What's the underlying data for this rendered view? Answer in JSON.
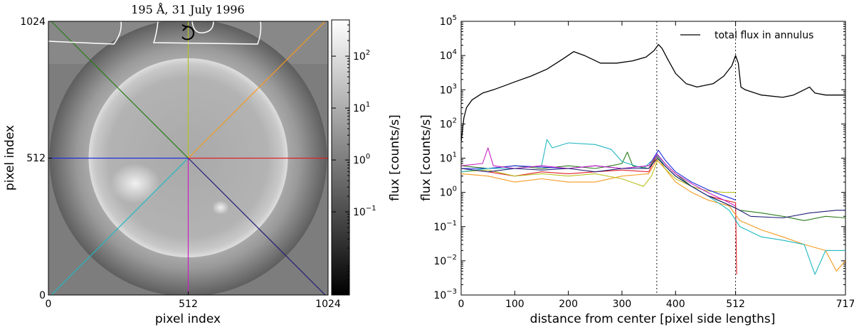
{
  "chart_data": [
    {
      "type": "heatmap",
      "title": "195 Å, 31 July 1996",
      "xlabel": "pixel index",
      "ylabel": "pixel index",
      "x_ticks": [
        "0",
        "512",
        "1024"
      ],
      "y_ticks": [
        "0",
        "512",
        "1024"
      ],
      "xlim": [
        0,
        1024
      ],
      "ylim": [
        0,
        1024
      ],
      "sun_center": [
        512,
        512
      ],
      "sun_radius": 365,
      "colorbar": {
        "label": "flux [counts/s]",
        "scale": "log",
        "range": [
          0.0025,
          500
        ],
        "ticks": [
          {
            "value": 100,
            "label": "10",
            "exp": "2"
          },
          {
            "value": 10,
            "label": "10",
            "exp": "1"
          },
          {
            "value": 1,
            "label": "10",
            "exp": "0"
          },
          {
            "value": 0.1,
            "label": "10",
            "exp": "−1"
          }
        ]
      },
      "rays": [
        {
          "name": "red",
          "color": "#e0202a",
          "angle_deg": 0
        },
        {
          "name": "orange",
          "color": "#f59a1f",
          "angle_deg": 45
        },
        {
          "name": "yellow",
          "color": "#b8c020",
          "angle_deg": 90
        },
        {
          "name": "green",
          "color": "#2a7d1a",
          "angle_deg": 135
        },
        {
          "name": "blue",
          "color": "#1f2ee0",
          "angle_deg": 180
        },
        {
          "name": "cyan",
          "color": "#20b8c0",
          "angle_deg": 225
        },
        {
          "name": "magenta",
          "color": "#c820c0",
          "angle_deg": 270
        },
        {
          "name": "navy",
          "color": "#1e1e78",
          "angle_deg": 315
        }
      ]
    },
    {
      "type": "line",
      "xlabel": "distance from center [pixel side lengths]",
      "ylabel": "flux [counts/s]",
      "yscale": "log",
      "xlim": [
        0,
        717
      ],
      "ylim": [
        0.001,
        100000
      ],
      "x_ticks": [
        "0",
        "100",
        "200",
        "300",
        "400",
        "512",
        "717"
      ],
      "y_ticks": [
        {
          "label": "10",
          "exp": "5"
        },
        {
          "label": "10",
          "exp": "4"
        },
        {
          "label": "10",
          "exp": "3"
        },
        {
          "label": "10",
          "exp": "2"
        },
        {
          "label": "10",
          "exp": "1"
        },
        {
          "label": "10",
          "exp": "0"
        },
        {
          "label": "10",
          "exp": "−1"
        },
        {
          "label": "10",
          "exp": "−2"
        },
        {
          "label": "10",
          "exp": "−3"
        }
      ],
      "vlines": [
        365,
        512
      ],
      "legend": {
        "label": "total flux in annulus",
        "position": "top-right"
      },
      "total_series": {
        "name": "total flux in annulus",
        "color": "#000000",
        "points": [
          [
            0,
            30
          ],
          [
            5,
            150
          ],
          [
            10,
            300
          ],
          [
            20,
            500
          ],
          [
            40,
            800
          ],
          [
            60,
            1000
          ],
          [
            80,
            1300
          ],
          [
            100,
            1700
          ],
          [
            130,
            2500
          ],
          [
            160,
            4000
          ],
          [
            190,
            8000
          ],
          [
            210,
            13000
          ],
          [
            230,
            10000
          ],
          [
            260,
            6000
          ],
          [
            290,
            6000
          ],
          [
            320,
            7000
          ],
          [
            345,
            9000
          ],
          [
            360,
            14000
          ],
          [
            368,
            21000
          ],
          [
            375,
            16000
          ],
          [
            385,
            8000
          ],
          [
            400,
            3000
          ],
          [
            420,
            1500
          ],
          [
            440,
            1200
          ],
          [
            470,
            1500
          ],
          [
            490,
            2500
          ],
          [
            505,
            5000
          ],
          [
            512,
            10000
          ],
          [
            517,
            6000
          ],
          [
            522,
            1200
          ],
          [
            530,
            1000
          ],
          [
            560,
            700
          ],
          [
            600,
            600
          ],
          [
            620,
            700
          ],
          [
            640,
            1000
          ],
          [
            650,
            1200
          ],
          [
            660,
            800
          ],
          [
            680,
            700
          ],
          [
            717,
            700
          ]
        ]
      },
      "ray_series": [
        {
          "name": "red",
          "color": "#e0202a",
          "points": [
            [
              0,
              5
            ],
            [
              50,
              4
            ],
            [
              100,
              3
            ],
            [
              150,
              4
            ],
            [
              200,
              3.5
            ],
            [
              250,
              4
            ],
            [
              300,
              4.5
            ],
            [
              350,
              4
            ],
            [
              365,
              12
            ],
            [
              380,
              6
            ],
            [
              400,
              3
            ],
            [
              430,
              1.5
            ],
            [
              460,
              0.8
            ],
            [
              490,
              0.6
            ],
            [
              512,
              0.5
            ],
            [
              514,
              0.004
            ]
          ]
        },
        {
          "name": "orange",
          "color": "#f59a1f",
          "points": [
            [
              0,
              3.5
            ],
            [
              50,
              3
            ],
            [
              100,
              2
            ],
            [
              150,
              2.5
            ],
            [
              200,
              2
            ],
            [
              250,
              2
            ],
            [
              300,
              3
            ],
            [
              350,
              3.5
            ],
            [
              365,
              9
            ],
            [
              380,
              5
            ],
            [
              400,
              2
            ],
            [
              430,
              1
            ],
            [
              460,
              0.6
            ],
            [
              500,
              0.4
            ],
            [
              520,
              0.15
            ],
            [
              560,
              0.08
            ],
            [
              600,
              0.05
            ],
            [
              640,
              0.03
            ],
            [
              680,
              0.02
            ],
            [
              700,
              0.005
            ],
            [
              717,
              0.01
            ]
          ]
        },
        {
          "name": "yellow",
          "color": "#b8c020",
          "points": [
            [
              0,
              4
            ],
            [
              50,
              4.5
            ],
            [
              100,
              3
            ],
            [
              150,
              3.5
            ],
            [
              200,
              3
            ],
            [
              250,
              3.5
            ],
            [
              300,
              2.5
            ],
            [
              340,
              1.5
            ],
            [
              355,
              3
            ],
            [
              368,
              10
            ],
            [
              380,
              5
            ],
            [
              400,
              2.5
            ],
            [
              430,
              1.5
            ],
            [
              460,
              1.1
            ],
            [
              490,
              1
            ],
            [
              512,
              1
            ]
          ]
        },
        {
          "name": "green",
          "color": "#2a7d1a",
          "points": [
            [
              0,
              6
            ],
            [
              50,
              5
            ],
            [
              100,
              6
            ],
            [
              150,
              5
            ],
            [
              200,
              6
            ],
            [
              250,
              5
            ],
            [
              280,
              6
            ],
            [
              300,
              7
            ],
            [
              310,
              15
            ],
            [
              320,
              6
            ],
            [
              350,
              5
            ],
            [
              366,
              13
            ],
            [
              380,
              7
            ],
            [
              400,
              3.5
            ],
            [
              430,
              1.5
            ],
            [
              460,
              0.8
            ],
            [
              490,
              0.5
            ],
            [
              520,
              0.3
            ],
            [
              560,
              0.25
            ],
            [
              600,
              0.2
            ],
            [
              640,
              0.15
            ],
            [
              680,
              0.2
            ],
            [
              717,
              0.18
            ]
          ]
        },
        {
          "name": "blue",
          "color": "#1f2ee0",
          "points": [
            [
              0,
              5
            ],
            [
              50,
              5
            ],
            [
              100,
              6
            ],
            [
              150,
              5.5
            ],
            [
              200,
              5
            ],
            [
              250,
              6
            ],
            [
              300,
              5
            ],
            [
              350,
              6
            ],
            [
              368,
              17
            ],
            [
              380,
              9
            ],
            [
              400,
              4
            ],
            [
              430,
              2
            ],
            [
              460,
              1.2
            ],
            [
              490,
              0.8
            ],
            [
              512,
              0.6
            ]
          ]
        },
        {
          "name": "cyan",
          "color": "#20b8c0",
          "points": [
            [
              0,
              4
            ],
            [
              50,
              5
            ],
            [
              100,
              5
            ],
            [
              150,
              6
            ],
            [
              160,
              35
            ],
            [
              170,
              20
            ],
            [
              200,
              28
            ],
            [
              250,
              25
            ],
            [
              280,
              18
            ],
            [
              300,
              8
            ],
            [
              340,
              5
            ],
            [
              366,
              12
            ],
            [
              380,
              6
            ],
            [
              400,
              3
            ],
            [
              430,
              1.5
            ],
            [
              460,
              0.8
            ],
            [
              500,
              0.3
            ],
            [
              520,
              0.1
            ],
            [
              560,
              0.05
            ],
            [
              600,
              0.04
            ],
            [
              640,
              0.03
            ],
            [
              660,
              0.004
            ],
            [
              680,
              0.02
            ],
            [
              717,
              0.02
            ]
          ]
        },
        {
          "name": "magenta",
          "color": "#c820c0",
          "points": [
            [
              0,
              6
            ],
            [
              40,
              7
            ],
            [
              50,
              20
            ],
            [
              60,
              6
            ],
            [
              100,
              5
            ],
            [
              150,
              6
            ],
            [
              200,
              5
            ],
            [
              250,
              6
            ],
            [
              300,
              5
            ],
            [
              350,
              6
            ],
            [
              366,
              13
            ],
            [
              380,
              7
            ],
            [
              400,
              3.5
            ],
            [
              430,
              1.8
            ],
            [
              460,
              1
            ],
            [
              490,
              0.6
            ],
            [
              512,
              0.4
            ]
          ]
        },
        {
          "name": "navy",
          "color": "#1e1e78",
          "points": [
            [
              0,
              5
            ],
            [
              50,
              4
            ],
            [
              100,
              5
            ],
            [
              150,
              4.5
            ],
            [
              200,
              5
            ],
            [
              250,
              4
            ],
            [
              300,
              5
            ],
            [
              350,
              5
            ],
            [
              366,
              10
            ],
            [
              380,
              6
            ],
            [
              400,
              3
            ],
            [
              430,
              1.5
            ],
            [
              460,
              0.8
            ],
            [
              490,
              0.5
            ],
            [
              512,
              0.35
            ],
            [
              540,
              0.2
            ],
            [
              600,
              0.18
            ],
            [
              650,
              0.25
            ],
            [
              700,
              0.3
            ],
            [
              717,
              0.3
            ]
          ]
        }
      ]
    }
  ]
}
